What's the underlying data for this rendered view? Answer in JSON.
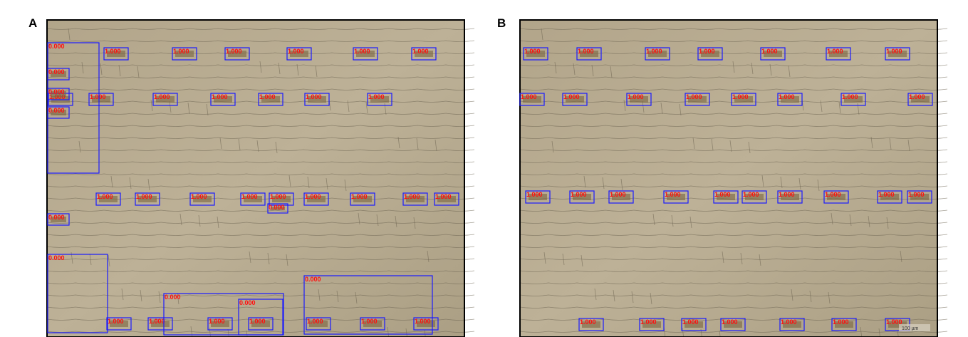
{
  "panels": [
    {
      "label": "A",
      "detections": [
        "1.000",
        "1.000",
        "1.000",
        "1.000",
        "1.000",
        "1.000",
        "1.000",
        "1.000",
        "1.000",
        "1.000",
        "1.000",
        "1.000",
        "1.000",
        "1.000",
        "1.000",
        "1.000",
        "1.000",
        "1.000",
        "1.000",
        "1.000",
        "1.000",
        "1.000",
        "1.000",
        "1.000",
        "1.000",
        "1.000",
        "1.000",
        "1.000",
        "1.000",
        "0.000",
        "0.000",
        "0.000",
        "0.000",
        "0.000",
        "0.000",
        "0.000",
        "0.000",
        "0.000",
        "0.000"
      ]
    },
    {
      "label": "B",
      "detections": [
        "1.000",
        "1.000",
        "1.000",
        "1.000",
        "1.000",
        "1.000",
        "1.000",
        "1.000",
        "1.000",
        "1.000",
        "1.000",
        "1.000",
        "1.000",
        "1.000",
        "1.000",
        "1.000",
        "1.000",
        "1.000",
        "1.000",
        "1.000",
        "1.000",
        "1.000",
        "1.000",
        "1.000",
        "1.000",
        "1.000",
        "1.000",
        "1.000",
        "1.000",
        "1.000",
        "1.000",
        "1.000"
      ],
      "scale_bar": "100 µm"
    }
  ]
}
